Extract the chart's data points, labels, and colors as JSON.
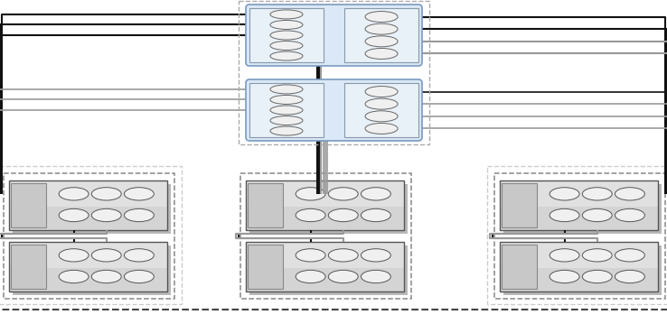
{
  "fig_w": 7.38,
  "fig_h": 3.69,
  "bg": "#ffffff",
  "ctrl_fill": "#dae8f7",
  "ctrl_edge": "#7a9abf",
  "hba_fill": "#e8f0f8",
  "hba_edge": "#8899aa",
  "shelf_body_fill": "#e0e0e0",
  "shelf_body_fill2": "#d4d4d4",
  "shelf_left_fill": "#c8c8c8",
  "shelf_shadow": "#b8b8b8",
  "port_fill": "#f0f0f0",
  "port_edge": "#666666",
  "lc_black": "#111111",
  "lc_dark": "#333333",
  "lc_gray": "#999999",
  "lc_lgray": "#bbbbbb",
  "box_dark": "#444444",
  "box_mid": "#888888",
  "box_light": "#aaaaaa",
  "box_vlight": "#cccccc"
}
